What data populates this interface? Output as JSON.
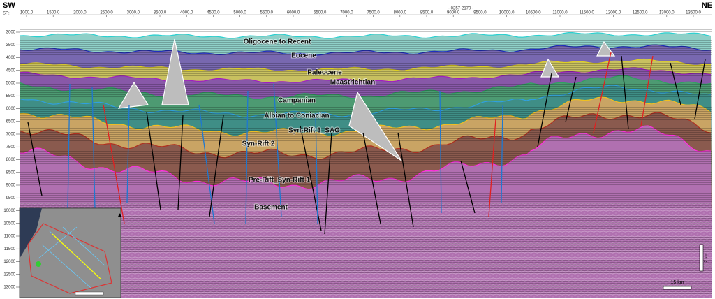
{
  "header": {
    "left_direction": "SW",
    "right_direction": "NE",
    "line_id": "· 0257-2170 ·",
    "sp_label": "SP:"
  },
  "top_axis": {
    "ticks": [
      "1000.0",
      "1500.0",
      "2000.0",
      "2500.0",
      "3000.0",
      "3500.0",
      "4000.0",
      "4500.0",
      "5000.0",
      "5500.0",
      "6000.0",
      "6500.0",
      "7000.0",
      "7500.0",
      "8000.0",
      "8500.0",
      "9000.0",
      "9500.0",
      "10000.0",
      "10500.0",
      "11000.0",
      "11500.0",
      "12000.0",
      "12500.0",
      "13000.0",
      "13500.0"
    ]
  },
  "left_axis": {
    "ticks": [
      "3000",
      "3500",
      "4000",
      "4500",
      "5000",
      "5500",
      "6000",
      "6500",
      "7000",
      "7500",
      "8000",
      "8500",
      "9000",
      "9500",
      "10000",
      "10500",
      "11000",
      "11500",
      "12000",
      "12500",
      "13000"
    ]
  },
  "horizons": [
    "Oligocene to Recent",
    "Eocene",
    "Paleocene",
    "Maastrichtian",
    "Campanian",
    "Albian to Coniacian",
    "Syn-Rift 3_SAG",
    "Syn-Rift 2",
    "Pre-Rift_Syn-Rift 1",
    "Basement"
  ],
  "scale_bar": {
    "horizontal": "15 km",
    "vertical": "2 km"
  }
}
